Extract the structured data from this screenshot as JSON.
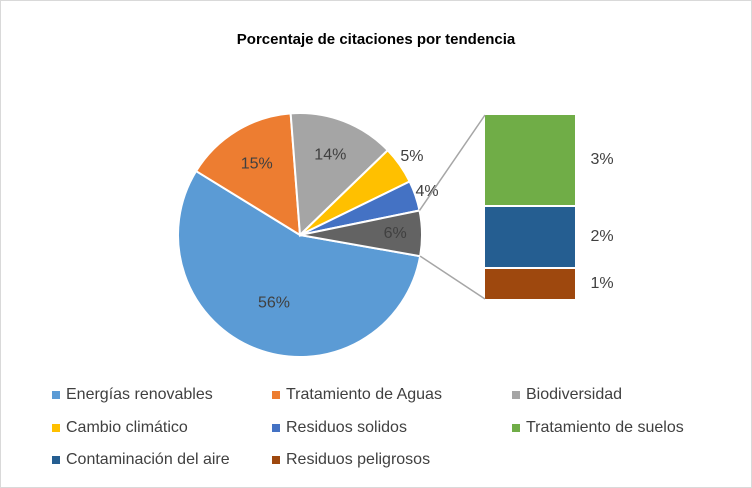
{
  "chart_data": {
    "type": "pie-of-bar",
    "title": "Porcentaje de citaciones por tendencia",
    "categories": [
      "Energías renovables",
      "Tratamiento de Aguas",
      "Biodiversidad",
      "Cambio climático",
      "Residuos solidos"
    ],
    "values": [
      56,
      15,
      14,
      5,
      4
    ],
    "value_labels": [
      "56%",
      "15%",
      "14%",
      "5%",
      "4%"
    ],
    "colors": [
      "#5b9bd5",
      "#ed7d31",
      "#a5a5a5",
      "#ffc000",
      "#4472c4"
    ],
    "other": {
      "value": 6,
      "value_label": "6%",
      "color": "#636363"
    },
    "breakdown": {
      "categories": [
        "Tratamiento de suelos",
        "Contaminación del aire",
        "Residuos peligrosos"
      ],
      "values": [
        3,
        2,
        1
      ],
      "value_labels": [
        "3%",
        "2%",
        "1%"
      ],
      "colors": [
        "#70ad47",
        "#255e91",
        "#9e480e"
      ]
    },
    "legend": "bottom"
  }
}
